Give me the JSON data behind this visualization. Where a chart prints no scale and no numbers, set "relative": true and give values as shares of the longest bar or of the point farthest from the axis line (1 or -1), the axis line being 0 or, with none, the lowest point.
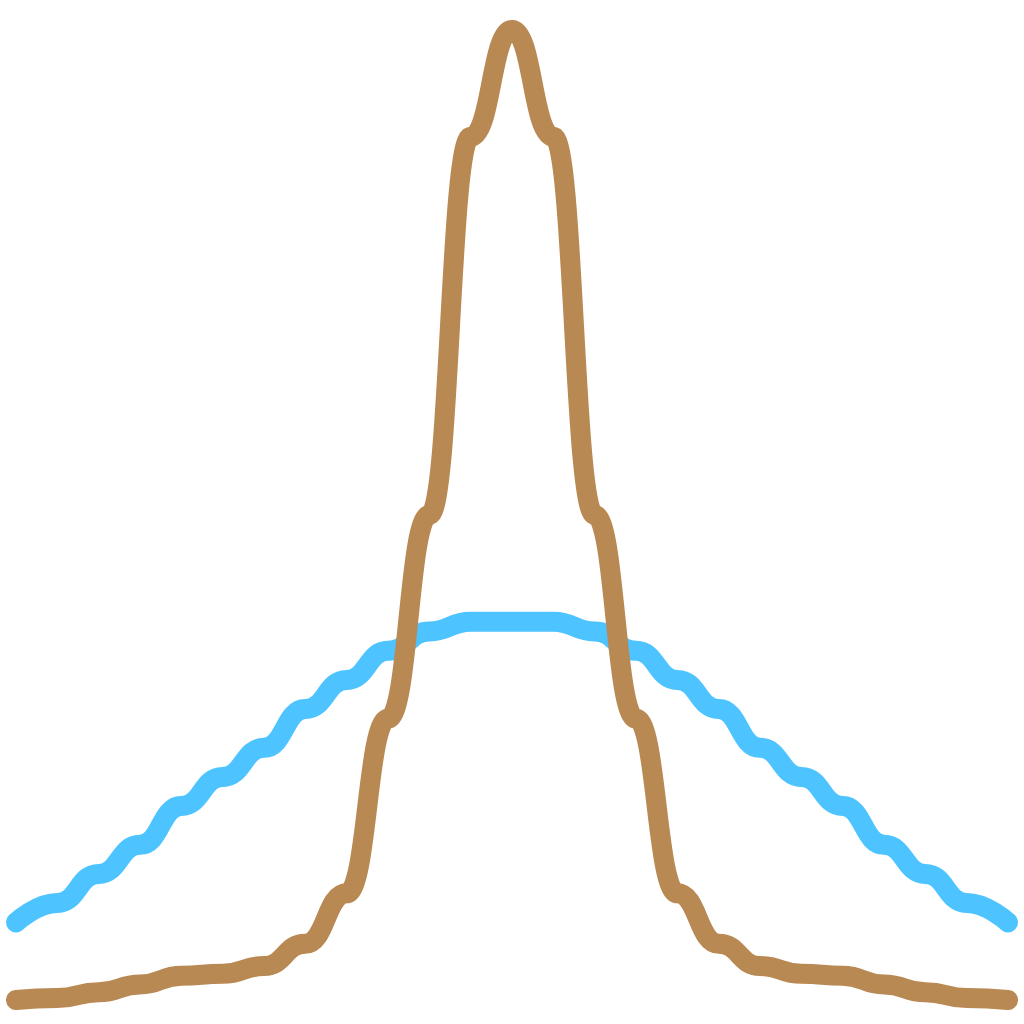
{
  "chart_data": {
    "type": "line",
    "relative": true,
    "categories": [
      null,
      null,
      null,
      null,
      null,
      null,
      null,
      null,
      null,
      null,
      null,
      null,
      null,
      null,
      null,
      null,
      null,
      null,
      null,
      null,
      null,
      null,
      null,
      null,
      null
    ],
    "series": [
      {
        "color": "#4dc3ff",
        "values": [
          0.08,
          0.1,
          0.13,
          0.16,
          0.2,
          0.23,
          0.26,
          0.3,
          0.33,
          0.36,
          0.38,
          0.39,
          0.39,
          0.39,
          0.38,
          0.36,
          0.33,
          0.3,
          0.26,
          0.23,
          0.2,
          0.16,
          0.13,
          0.1,
          0.08
        ]
      },
      {
        "color": "#b98953",
        "values": [
          0,
          0.002,
          0.008,
          0.016,
          0.025,
          0.027,
          0.035,
          0.058,
          0.11,
          0.29,
          0.5,
          0.89,
          1,
          0.89,
          0.5,
          0.29,
          0.11,
          0.058,
          0.035,
          0.027,
          0.025,
          0.016,
          0.008,
          0.002,
          0
        ]
      }
    ]
  }
}
